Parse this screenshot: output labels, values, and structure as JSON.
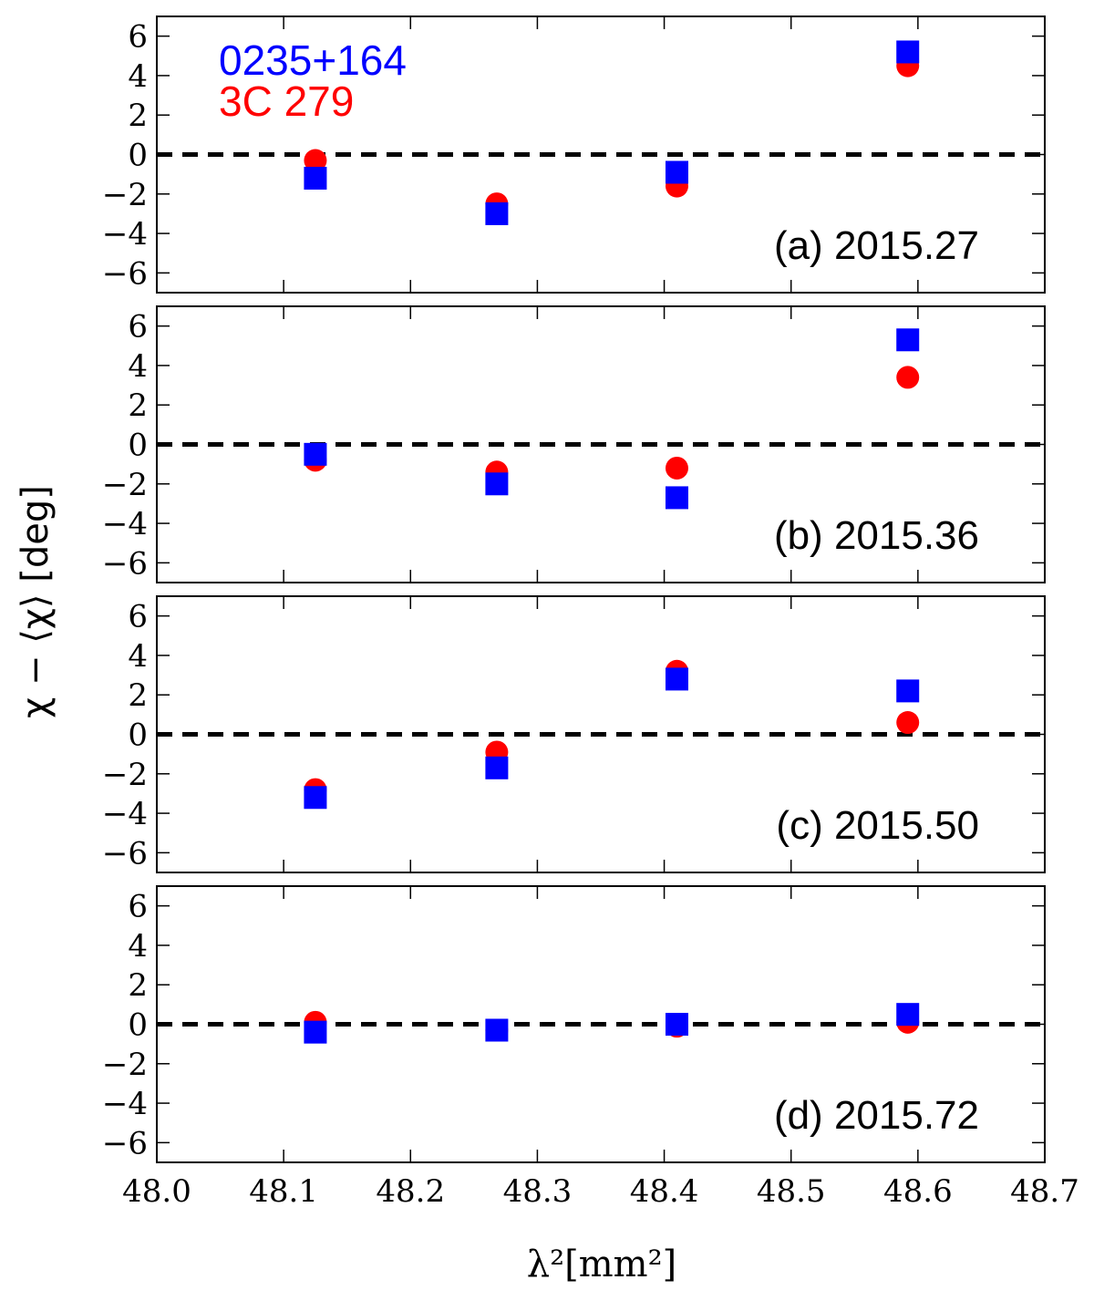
{
  "chart_data": {
    "type": "scatter",
    "xlabel": "λ²[mm²]",
    "ylabel": "χ − ⟨χ⟩ [deg]",
    "xlim": [
      48.0,
      48.7
    ],
    "ylim": [
      -7,
      7
    ],
    "x_ticks": [
      "48.0",
      "48.1",
      "48.2",
      "48.3",
      "48.4",
      "48.5",
      "48.6",
      "48.7"
    ],
    "y_ticks": [
      "−6",
      "−4",
      "−2",
      "0",
      "2",
      "4",
      "6"
    ],
    "legend": [
      {
        "name": "0235+164",
        "color": "#0000ff",
        "marker": "square"
      },
      {
        "name": "3C 279",
        "color": "#ff0000",
        "marker": "circle"
      }
    ],
    "legend_position": "top-left",
    "reference_line": {
      "y": 0,
      "style": "dashed",
      "color": "#000000"
    },
    "x": [
      48.125,
      48.268,
      48.41,
      48.592
    ],
    "panels": [
      {
        "label": "(a) 2015.27",
        "series": [
          {
            "name": "3C 279",
            "color": "#ff0000",
            "marker": "circle",
            "values": [
              -0.3,
              -2.5,
              -1.6,
              4.5
            ]
          },
          {
            "name": "0235+164",
            "color": "#0000ff",
            "marker": "square",
            "values": [
              -1.2,
              -3.0,
              -0.9,
              5.2
            ]
          }
        ]
      },
      {
        "label": "(b) 2015.36",
        "series": [
          {
            "name": "3C 279",
            "color": "#ff0000",
            "marker": "circle",
            "values": [
              -0.8,
              -1.4,
              -1.2,
              3.4
            ]
          },
          {
            "name": "0235+164",
            "color": "#0000ff",
            "marker": "square",
            "values": [
              -0.5,
              -2.0,
              -2.7,
              5.3
            ]
          }
        ]
      },
      {
        "label": "(c) 2015.50",
        "series": [
          {
            "name": "3C 279",
            "color": "#ff0000",
            "marker": "circle",
            "values": [
              -2.8,
              -0.9,
              3.2,
              0.6
            ]
          },
          {
            "name": "0235+164",
            "color": "#0000ff",
            "marker": "square",
            "values": [
              -3.2,
              -1.7,
              2.8,
              2.2
            ]
          }
        ]
      },
      {
        "label": "(d) 2015.72",
        "series": [
          {
            "name": "3C 279",
            "color": "#ff0000",
            "marker": "circle",
            "values": [
              0.1,
              -0.3,
              -0.1,
              0.1
            ]
          },
          {
            "name": "0235+164",
            "color": "#0000ff",
            "marker": "square",
            "values": [
              -0.4,
              -0.3,
              0.0,
              0.5
            ]
          }
        ]
      }
    ]
  }
}
